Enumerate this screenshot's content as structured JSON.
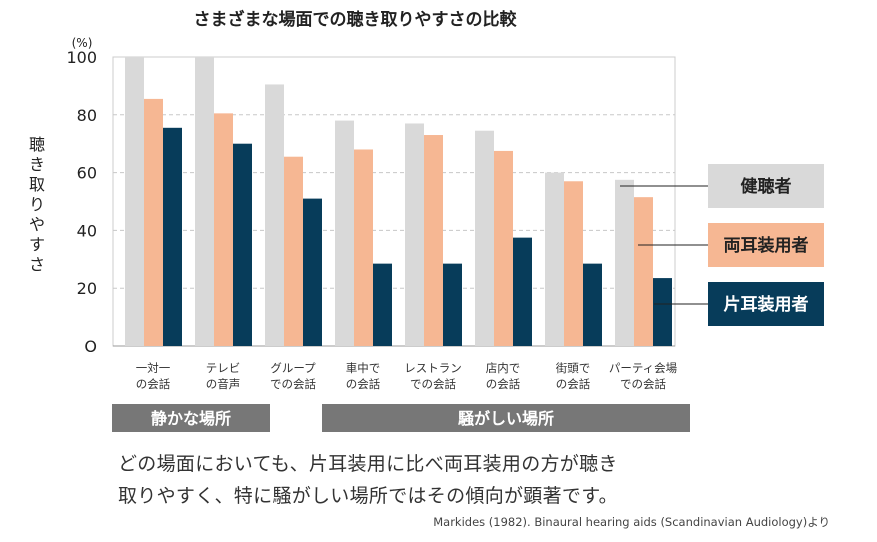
{
  "note_lines": [
    "どの場面においても、片耳装用に比べ両耳装用の方が聴き",
    "取りやすく、特に騒がしい場所ではその傾向が顕著です。"
  ],
  "source": "Markides (1982). Binaural hearing aids (Scandinavian Audiology)より",
  "chart_data": {
    "type": "bar",
    "title": "さまざまな場面での聴き取りやすさの比較",
    "ylabel": "聴き取りやすさ",
    "y_unit": "(%)",
    "ylim": [
      0,
      100
    ],
    "yticks": [
      0,
      20,
      40,
      60,
      80,
      100
    ],
    "ytick_labels": [
      "O",
      "20",
      "40",
      "60",
      "80",
      "100"
    ],
    "grid": "horizontal-dashed",
    "categories": [
      [
        "一対一",
        "の会話"
      ],
      [
        "テレビ",
        "の音声"
      ],
      [
        "グループ",
        "での会話"
      ],
      [
        "車中で",
        "の会話"
      ],
      [
        "レストラン",
        "での会話"
      ],
      [
        "店内で",
        "の会話"
      ],
      [
        "街頭で",
        "の会話"
      ],
      [
        "パーティ会場",
        "での会話"
      ]
    ],
    "series": [
      {
        "name": "健聴者",
        "color": "#d9d9d9",
        "text_color": "#222222",
        "values": [
          100,
          100,
          90.5,
          78,
          77,
          74.5,
          60,
          57.5
        ]
      },
      {
        "name": "両耳装用者",
        "color": "#f6b793",
        "text_color": "#222222",
        "values": [
          85.5,
          80.5,
          65.5,
          68,
          73,
          67.5,
          57,
          51.5
        ]
      },
      {
        "name": "片耳装用者",
        "color": "#073c5a",
        "text_color": "#ffffff",
        "values": [
          75.5,
          70,
          51,
          28.5,
          28.5,
          37.5,
          28.5,
          23.5
        ]
      }
    ],
    "legend_placement": "right",
    "groups": [
      {
        "label": "静かな場所",
        "span": [
          0,
          1
        ],
        "color": "#777777"
      },
      {
        "label": "騒がしい場所",
        "span": [
          3,
          7
        ],
        "color": "#777777"
      }
    ]
  }
}
